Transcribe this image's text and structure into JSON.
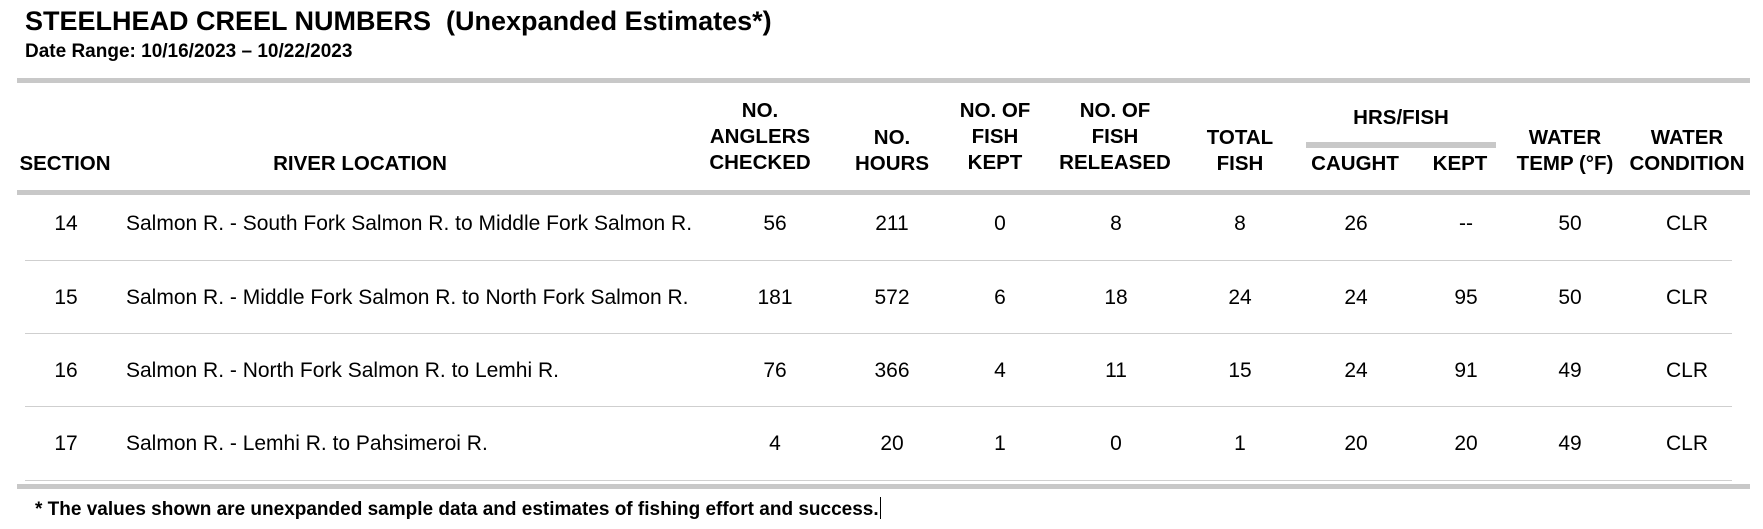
{
  "title": "STEELHEAD CREEL NUMBERS  (Unexpanded Estimates*)",
  "date_range": "Date Range: 10/16/2023 – 10/22/2023",
  "headers": {
    "section": "SECTION",
    "river_location": "RIVER LOCATION",
    "anglers": [
      "NO.",
      "ANGLERS",
      "CHECKED"
    ],
    "hours": [
      "NO.",
      "HOURS"
    ],
    "kept": [
      "NO. OF",
      "FISH",
      "KEPT"
    ],
    "released": [
      "NO. OF",
      "FISH",
      "RELEASED"
    ],
    "total": [
      "TOTAL",
      "FISH"
    ],
    "hrs_per_fish": "HRS/FISH",
    "caught": "CAUGHT",
    "kept_sub": "KEPT",
    "water_temp": [
      "WATER",
      "TEMP (°F)"
    ],
    "water_condition": [
      "WATER",
      "CONDITION"
    ]
  },
  "rows": [
    {
      "section": "14",
      "location": "Salmon R. - South Fork Salmon R. to Middle Fork Salmon R.",
      "anglers": "56",
      "hours": "211",
      "kept": "0",
      "released": "8",
      "total": "8",
      "hrs_caught": "26",
      "hrs_kept": "--",
      "temp": "50",
      "condition": "CLR"
    },
    {
      "section": "15",
      "location": "Salmon R. - Middle Fork Salmon R. to North Fork Salmon R.",
      "anglers": "181",
      "hours": "572",
      "kept": "6",
      "released": "18",
      "total": "24",
      "hrs_caught": "24",
      "hrs_kept": "95",
      "temp": "50",
      "condition": "CLR"
    },
    {
      "section": "16",
      "location": "Salmon R. - North Fork Salmon R. to Lemhi R.",
      "anglers": "76",
      "hours": "366",
      "kept": "4",
      "released": "11",
      "total": "15",
      "hrs_caught": "24",
      "hrs_kept": "91",
      "temp": "49",
      "condition": "CLR"
    },
    {
      "section": "17",
      "location": "Salmon R. - Lemhi R. to Pahsimeroi R.",
      "anglers": "4",
      "hours": "20",
      "kept": "1",
      "released": "0",
      "total": "1",
      "hrs_caught": "20",
      "hrs_kept": "20",
      "temp": "49",
      "condition": "CLR"
    }
  ],
  "footnote": "* The values shown are unexpanded sample data and estimates of fishing effort and success."
}
